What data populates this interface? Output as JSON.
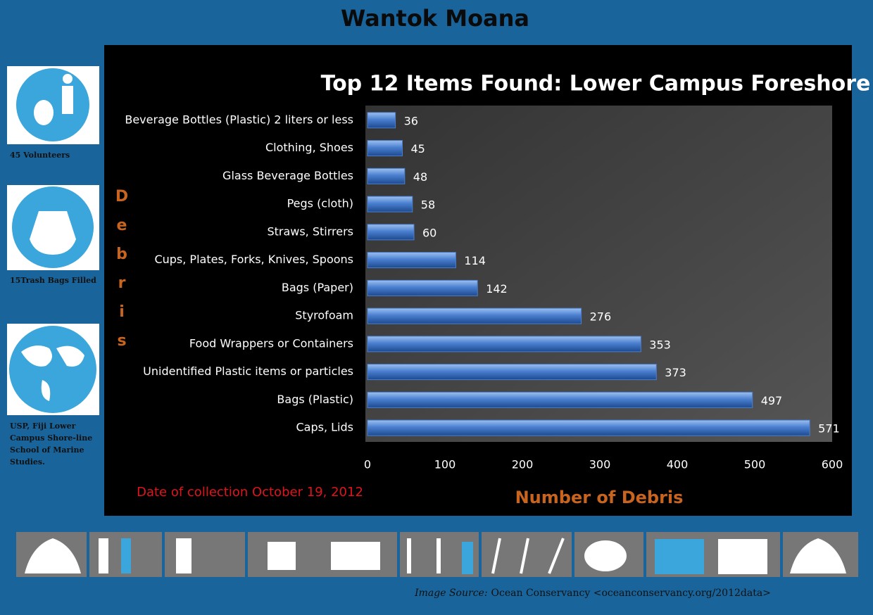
{
  "header": {
    "title": "Wantok Moana"
  },
  "sidebar": {
    "captions": [
      "45 Volunteers",
      "15Trash Bags Filled",
      "USP, Fiji Lower Campus Shore-line School of Marine Studies."
    ]
  },
  "footer": {
    "source_label": "Image Source:",
    "source": "Ocean Conservancy <oceanconservancy.org/2012data>"
  },
  "chart_data": {
    "type": "barh",
    "title": "Top 12 Items Found: Lower Campus Foreshore",
    "subtitle": "Date of collection October 19,  2012",
    "x_label": "Number of Debris",
    "y_label": "Debris",
    "categories": [
      "Beverage Bottles (Plastic) 2 liters or less",
      "Clothing, Shoes",
      "Glass Beverage Bottles",
      "Pegs (cloth)",
      "Straws, Stirrers",
      "Cups, Plates, Forks, Knives, Spoons",
      "Bags (Paper)",
      "Styrofoam",
      "Food Wrappers or Containers",
      "Unidentified Plastic items or particles",
      "Bags (Plastic)",
      "Caps, Lids"
    ],
    "values": [
      36,
      45,
      48,
      58,
      60,
      114,
      142,
      276,
      353,
      373,
      497,
      571
    ],
    "color": "#4a7fd0",
    "xlim": [
      0,
      600
    ],
    "xticks": [
      0,
      100,
      200,
      300,
      400,
      500,
      600
    ]
  }
}
